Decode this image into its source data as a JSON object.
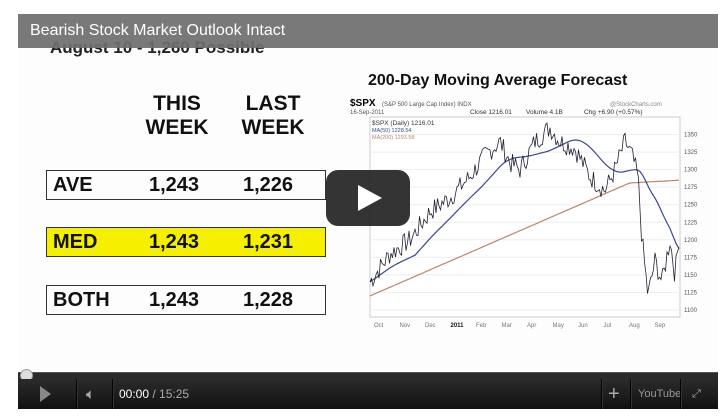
{
  "video": {
    "title": "Bearish Stock Market Outlook Intact",
    "slide_subtitle": "August 10 - 1,260 Possible",
    "table": {
      "headers": [
        "THIS WEEK",
        "LAST WEEK"
      ],
      "rows": [
        {
          "label": "AVE",
          "this_week": "1,243",
          "last_week": "1,226",
          "highlight": false
        },
        {
          "label": "MED",
          "this_week": "1,243",
          "last_week": "1,231",
          "highlight": true
        },
        {
          "label": "BOTH",
          "this_week": "1,243",
          "last_week": "1,228",
          "highlight": false
        }
      ],
      "highlight_color": "#f5f000"
    },
    "chart": {
      "title": "200-Day Moving Average Forecast",
      "symbol": "$SPX",
      "index_name": "(S&P 500 Large Cap Index) INDX",
      "source": "@StockCharts.com",
      "date": "16-Sep-2011",
      "close": "Close 1216.01",
      "volume": "Volume 4.1B",
      "chg": "Chg +6.90 (+0.57%)",
      "legend": [
        "$SPX (Daily) 1216.01",
        "MA(50) 1228.54",
        "MA(200) 1293.58"
      ],
      "y_ticks": [
        "1350",
        "1325",
        "1300",
        "1275",
        "1250",
        "1225",
        "1200",
        "1175",
        "1150",
        "1125",
        "1100"
      ],
      "x_ticks": [
        "Oct",
        "Nov",
        "Dec",
        "2011",
        "Feb",
        "Mar",
        "Apr",
        "May",
        "Jun",
        "Jul",
        "Aug",
        "Sep"
      ],
      "colors": {
        "price": "#222233",
        "ma50": "#3a4a8a",
        "ma200": "#b9866a"
      }
    }
  },
  "controls": {
    "current_time": "00:00",
    "duration": "/ 15:25",
    "progress": 0,
    "logo": "YouTube"
  }
}
